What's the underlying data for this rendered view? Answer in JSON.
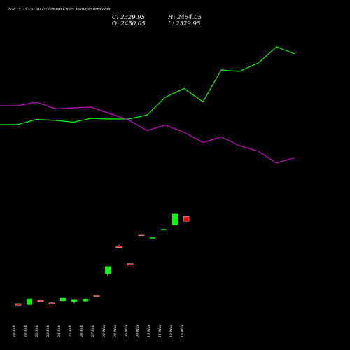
{
  "header": {
    "title": "NIFTY 25750.00 PE Option Chart MunafaSutra.com",
    "close": "C: 2329.95",
    "open": "O: 2450.05",
    "high": "H: 2454.05",
    "low": "L: 2329.95"
  },
  "chart_data": {
    "type": "candlestick",
    "categories": [
      "18 Feb",
      "19 Feb",
      "20 Feb",
      "23 Feb",
      "24 Feb",
      "25 Feb",
      "26 Feb",
      "27 Feb",
      "02 Mar",
      "04 Mar",
      "05 Mar",
      "09 Mar",
      "10 Mar",
      "11 Mar",
      "12 Mar",
      "16 Mar"
    ],
    "candles": [
      {
        "open": 10,
        "close": 8,
        "high": 10.3,
        "low": 7.8
      },
      {
        "open": 8.5,
        "close": 16.5,
        "high": 16.7,
        "low": 8.3
      },
      {
        "open": 14.5,
        "close": 12.8,
        "high": 15.2,
        "low": 12.4
      },
      {
        "open": 11,
        "close": 10.8,
        "high": 12,
        "low": 9.8
      },
      {
        "open": 13.5,
        "close": 17.5,
        "high": 17.7,
        "low": 13.3
      },
      {
        "open": 12.5,
        "close": 15.8,
        "high": 16.2,
        "low": 10.8
      },
      {
        "open": 13.2,
        "close": 16.3,
        "high": 16.8,
        "low": 12.6
      },
      {
        "open": 21,
        "close": 20.5,
        "high": 21.3,
        "low": 20.2
      },
      {
        "open": 49,
        "close": 58.5,
        "high": 59,
        "low": 46
      },
      {
        "open": 85,
        "close": 83,
        "high": 86.5,
        "low": 82.5
      },
      {
        "open": 62,
        "close": 61.3,
        "high": 62.3,
        "low": 61
      },
      {
        "open": 100,
        "close": 99.6,
        "high": 100.3,
        "low": 99.3
      },
      {
        "open": 95.5,
        "close": 96.2,
        "high": 96.5,
        "low": 95.2
      },
      {
        "open": 106.5,
        "close": 106.9,
        "high": 107.2,
        "low": 106.2
      },
      {
        "open": 112,
        "close": 127.5,
        "high": 127.8,
        "low": 111.8
      },
      {
        "open": 123.5,
        "close": 117.2,
        "high": 123.8,
        "low": 116.8
      }
    ],
    "ylim": [
      0,
      150
    ],
    "line_series": [
      {
        "color": "#00ff00",
        "values": [
          178,
          178,
          170.5,
          172,
          174.5,
          169,
          170,
          170,
          164.5,
          139,
          126.5,
          145.5,
          100,
          102,
          90,
          67
        ]
      },
      {
        "color": "#cc00cc",
        "values": [
          151,
          151,
          146,
          155.5,
          154,
          153,
          161.5,
          171,
          186.5,
          178.5,
          189,
          203.5,
          195.5,
          208,
          216,
          233
        ]
      },
      {
        "line_ylim": [
          250,
          40
        ]
      }
    ],
    "colors": {
      "up": "#00ff00",
      "down": "#ff0000",
      "wick": "#ffffff"
    },
    "grid": false
  }
}
